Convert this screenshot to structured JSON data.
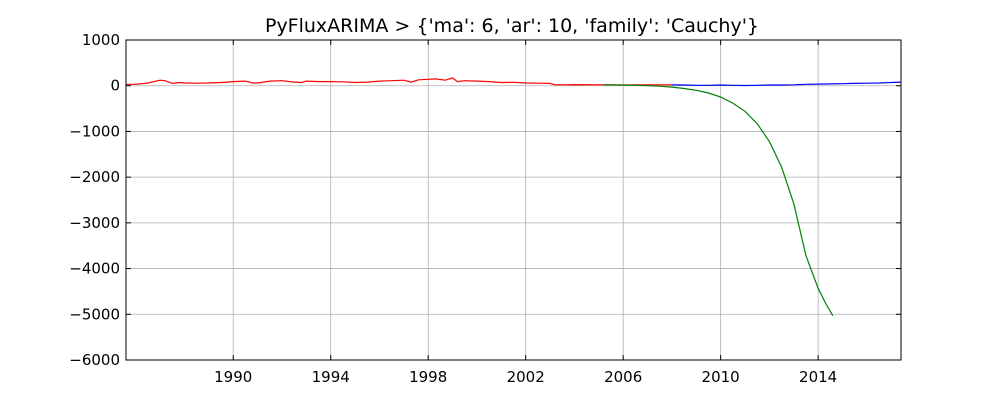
{
  "chart_data": {
    "type": "line",
    "title": "PyFluxARIMA > {'ma': 6, 'ar': 10, 'family': 'Cauchy'}",
    "xlabel": "",
    "ylabel": "",
    "xlim": [
      1985.6,
      2017.4
    ],
    "ylim": [
      -6000,
      1000
    ],
    "grid": true,
    "x_ticks": [
      1990,
      1994,
      1998,
      2002,
      2006,
      2010,
      2014
    ],
    "x_tick_labels": [
      "1990",
      "1994",
      "1998",
      "2002",
      "2006",
      "2010",
      "2014"
    ],
    "y_ticks": [
      1000,
      0,
      -1000,
      -2000,
      -3000,
      -4000,
      -5000,
      -6000
    ],
    "y_tick_labels": [
      "1000",
      "0",
      "−1000",
      "−2000",
      "−3000",
      "−4000",
      "−5000",
      "−6000"
    ],
    "series": [
      {
        "color": "#ff0000",
        "x": [
          1985.6,
          1986.0,
          1986.5,
          1987.0,
          1987.2,
          1987.5,
          1987.8,
          1988.0,
          1988.5,
          1989.0,
          1989.5,
          1990.0,
          1990.5,
          1990.8,
          1991.0,
          1991.5,
          1992.0,
          1992.5,
          1992.8,
          1993.0,
          1993.5,
          1994.0,
          1994.5,
          1995.0,
          1995.5,
          1996.0,
          1996.5,
          1997.0,
          1997.3,
          1997.6,
          1998.0,
          1998.3,
          1998.7,
          1999.0,
          1999.2,
          1999.5,
          2000.0,
          2000.5,
          2001.0,
          2001.5,
          2002.0,
          2002.5,
          2003.0,
          2003.2,
          2003.6,
          2004.0,
          2005.0,
          2006.0,
          2007.0,
          2008.0
        ],
        "y": [
          30,
          30,
          60,
          120,
          110,
          50,
          70,
          60,
          55,
          60,
          70,
          90,
          100,
          60,
          60,
          100,
          110,
          80,
          70,
          100,
          90,
          90,
          85,
          70,
          80,
          100,
          110,
          120,
          80,
          130,
          140,
          150,
          120,
          170,
          90,
          110,
          100,
          90,
          70,
          75,
          60,
          55,
          50,
          20,
          20,
          25,
          20,
          15,
          20,
          20
        ]
      },
      {
        "color": "#0000ff",
        "x": [
          2008.0,
          2008.5,
          2009.0,
          2009.5,
          2010.0,
          2010.5,
          2011.0,
          2011.5,
          2012.0,
          2012.5,
          2013.0,
          2013.5,
          2014.0,
          2014.5,
          2015.0,
          2015.5,
          2016.0,
          2016.5,
          2017.0,
          2017.4
        ],
        "y": [
          20,
          15,
          10,
          10,
          15,
          10,
          5,
          10,
          15,
          15,
          20,
          30,
          35,
          40,
          45,
          50,
          55,
          60,
          70,
          80
        ]
      },
      {
        "color": "#008000",
        "x": [
          2005.2,
          2006.0,
          2006.5,
          2007.0,
          2007.5,
          2008.0,
          2008.5,
          2009.0,
          2009.5,
          2010.0,
          2010.5,
          2011.0,
          2011.5,
          2012.0,
          2012.5,
          2013.0,
          2013.5,
          2014.0,
          2014.3,
          2014.6
        ],
        "y": [
          20,
          15,
          10,
          0,
          -10,
          -30,
          -60,
          -100,
          -160,
          -250,
          -380,
          -560,
          -830,
          -1220,
          -1780,
          -2580,
          -3720,
          -4430,
          -4750,
          -5030
        ]
      }
    ]
  }
}
